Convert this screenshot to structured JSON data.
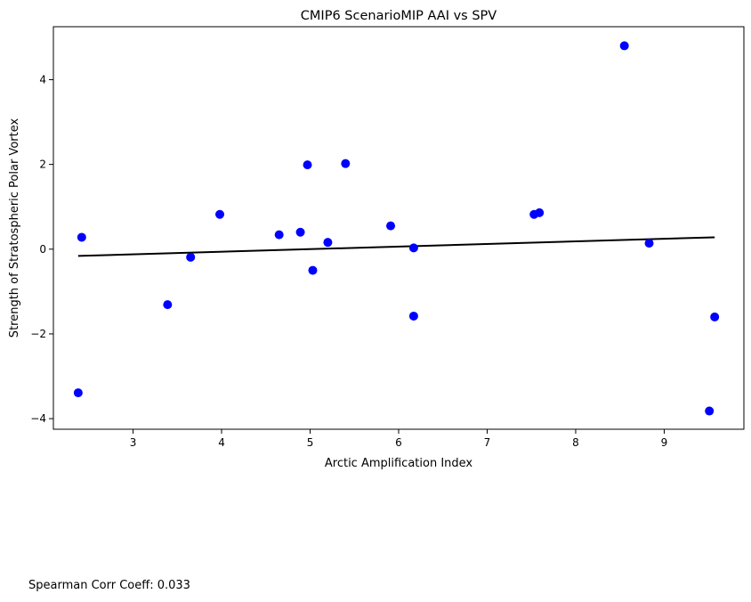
{
  "chart_data": {
    "type": "scatter",
    "title": "CMIP6 ScenarioMIP AAI vs SPV",
    "xlabel": "Arctic Amplification Index",
    "ylabel": "Strength of Stratospheric Polar Vortex",
    "xlim": [
      2.1,
      9.9
    ],
    "ylim": [
      -4.25,
      5.25
    ],
    "xticks": [
      3,
      4,
      5,
      6,
      7,
      8,
      9
    ],
    "yticks": [
      -4,
      -2,
      0,
      2,
      4
    ],
    "grid": false,
    "point_color": "#0000ff",
    "line_color": "#000000",
    "points": [
      {
        "x": 2.38,
        "y": -3.39
      },
      {
        "x": 2.42,
        "y": 0.28
      },
      {
        "x": 3.39,
        "y": -1.31
      },
      {
        "x": 3.65,
        "y": -0.19
      },
      {
        "x": 3.98,
        "y": 0.82
      },
      {
        "x": 4.65,
        "y": 0.34
      },
      {
        "x": 4.89,
        "y": 0.4
      },
      {
        "x": 4.97,
        "y": 1.99
      },
      {
        "x": 5.03,
        "y": -0.5
      },
      {
        "x": 5.2,
        "y": 0.16
      },
      {
        "x": 5.4,
        "y": 2.02
      },
      {
        "x": 5.91,
        "y": 0.55
      },
      {
        "x": 6.17,
        "y": 0.03
      },
      {
        "x": 6.17,
        "y": -1.58
      },
      {
        "x": 7.53,
        "y": 0.82
      },
      {
        "x": 7.59,
        "y": 0.86
      },
      {
        "x": 8.55,
        "y": 4.8
      },
      {
        "x": 8.83,
        "y": 0.14
      },
      {
        "x": 9.51,
        "y": -3.82
      },
      {
        "x": 9.57,
        "y": -1.6
      }
    ],
    "regression_line": {
      "x": [
        2.38,
        9.57
      ],
      "y": [
        -0.16,
        0.28
      ]
    }
  },
  "footnote": "Spearman Corr Coeff: 0.033"
}
